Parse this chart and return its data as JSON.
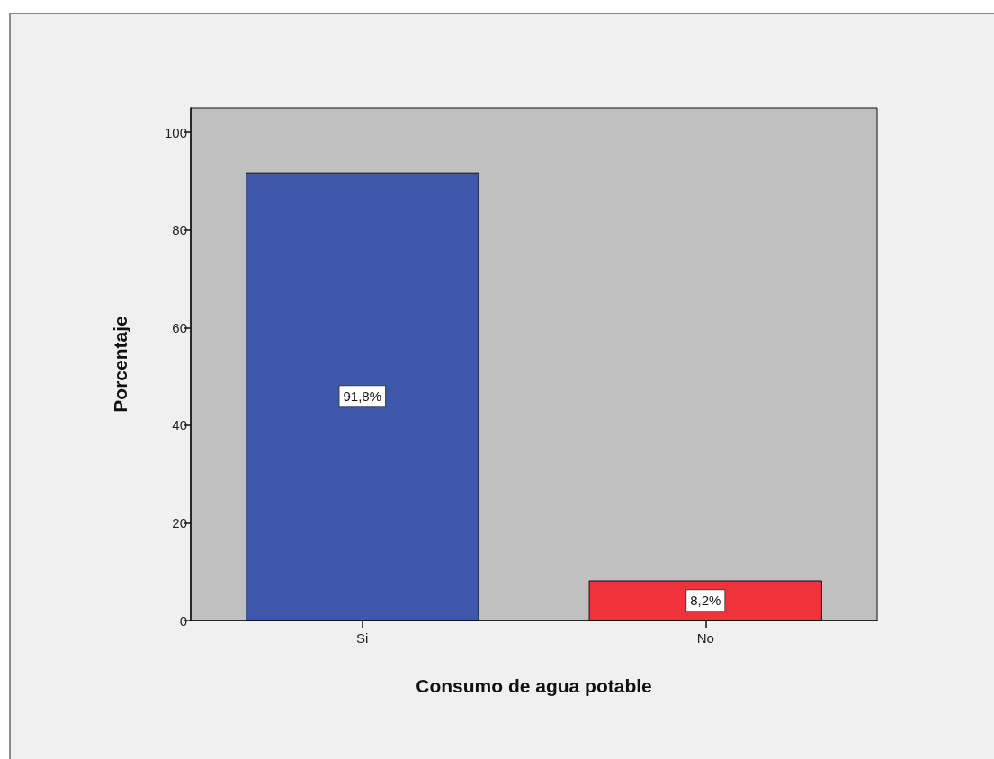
{
  "chart_data": {
    "type": "bar",
    "xlabel": "Consumo de agua potable",
    "ylabel": "Porcentaje",
    "categories": [
      "Si",
      "No"
    ],
    "values": [
      91.8,
      8.2
    ],
    "colors": [
      "#3d58aa",
      "#f0323a"
    ],
    "value_labels": [
      "91,8%",
      "8,2%"
    ],
    "ylim": [
      0,
      105
    ],
    "yticks": [
      0,
      20,
      40,
      60,
      80,
      100
    ]
  }
}
